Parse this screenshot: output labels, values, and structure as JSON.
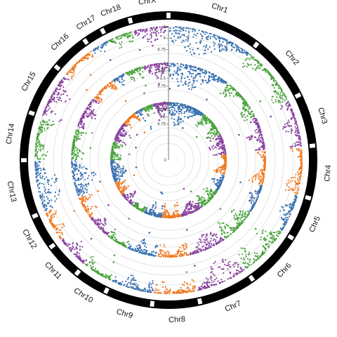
{
  "chart_data": {
    "type": "scatter",
    "subtype": "circular-manhattan",
    "chromosomes": [
      "Chr1",
      "Chr2",
      "Chr3",
      "Chr4",
      "Chr5",
      "Chr6",
      "Chr7",
      "Chr8",
      "Chr9",
      "Chr10",
      "Chr11",
      "Chr12",
      "Chr13",
      "Chr14",
      "Chr15",
      "Chr16",
      "Chr17",
      "Chr18",
      "ChrX"
    ],
    "chromosome_sizes": [
      10,
      7,
      5.5,
      5.5,
      4.5,
      6,
      6,
      5,
      5,
      3.5,
      3.8,
      3.6,
      6,
      5,
      5.5,
      4,
      2,
      3,
      4
    ],
    "palette": [
      "#3a72b0",
      "#4aa23e",
      "#8a44a0",
      "#f07a22"
    ],
    "tracks": [
      {
        "ring": "outer",
        "tick_labels": [
          "1",
          "4",
          "6.75"
        ],
        "peaks": [
          1.0,
          0.55,
          0.6,
          0.7,
          0.5,
          0.8,
          0.85,
          0.6,
          0.5,
          0.45,
          0.55,
          0.5,
          0.95,
          0.55,
          0.7,
          0.4,
          0.35,
          0.5,
          0.6
        ]
      },
      {
        "ring": "middle",
        "tick_labels": [
          "1",
          "2.25",
          "4.5",
          "6.75"
        ],
        "peaks": [
          0.95,
          0.5,
          0.6,
          0.55,
          0.45,
          0.65,
          0.6,
          0.5,
          0.55,
          0.4,
          0.5,
          0.5,
          0.9,
          0.5,
          0.6,
          0.45,
          0.4,
          0.5,
          0.55
        ]
      },
      {
        "ring": "inner",
        "tick_labels": [
          "1",
          "2.25",
          "4.5",
          "6.75"
        ],
        "peaks": [
          0.9,
          0.55,
          0.7,
          0.5,
          0.45,
          0.55,
          0.5,
          0.6,
          0.55,
          0.45,
          0.5,
          0.45,
          0.6,
          0.5,
          0.55,
          0.45,
          0.5,
          0.5,
          0.6
        ]
      }
    ],
    "center_value": "0",
    "grid": true
  }
}
